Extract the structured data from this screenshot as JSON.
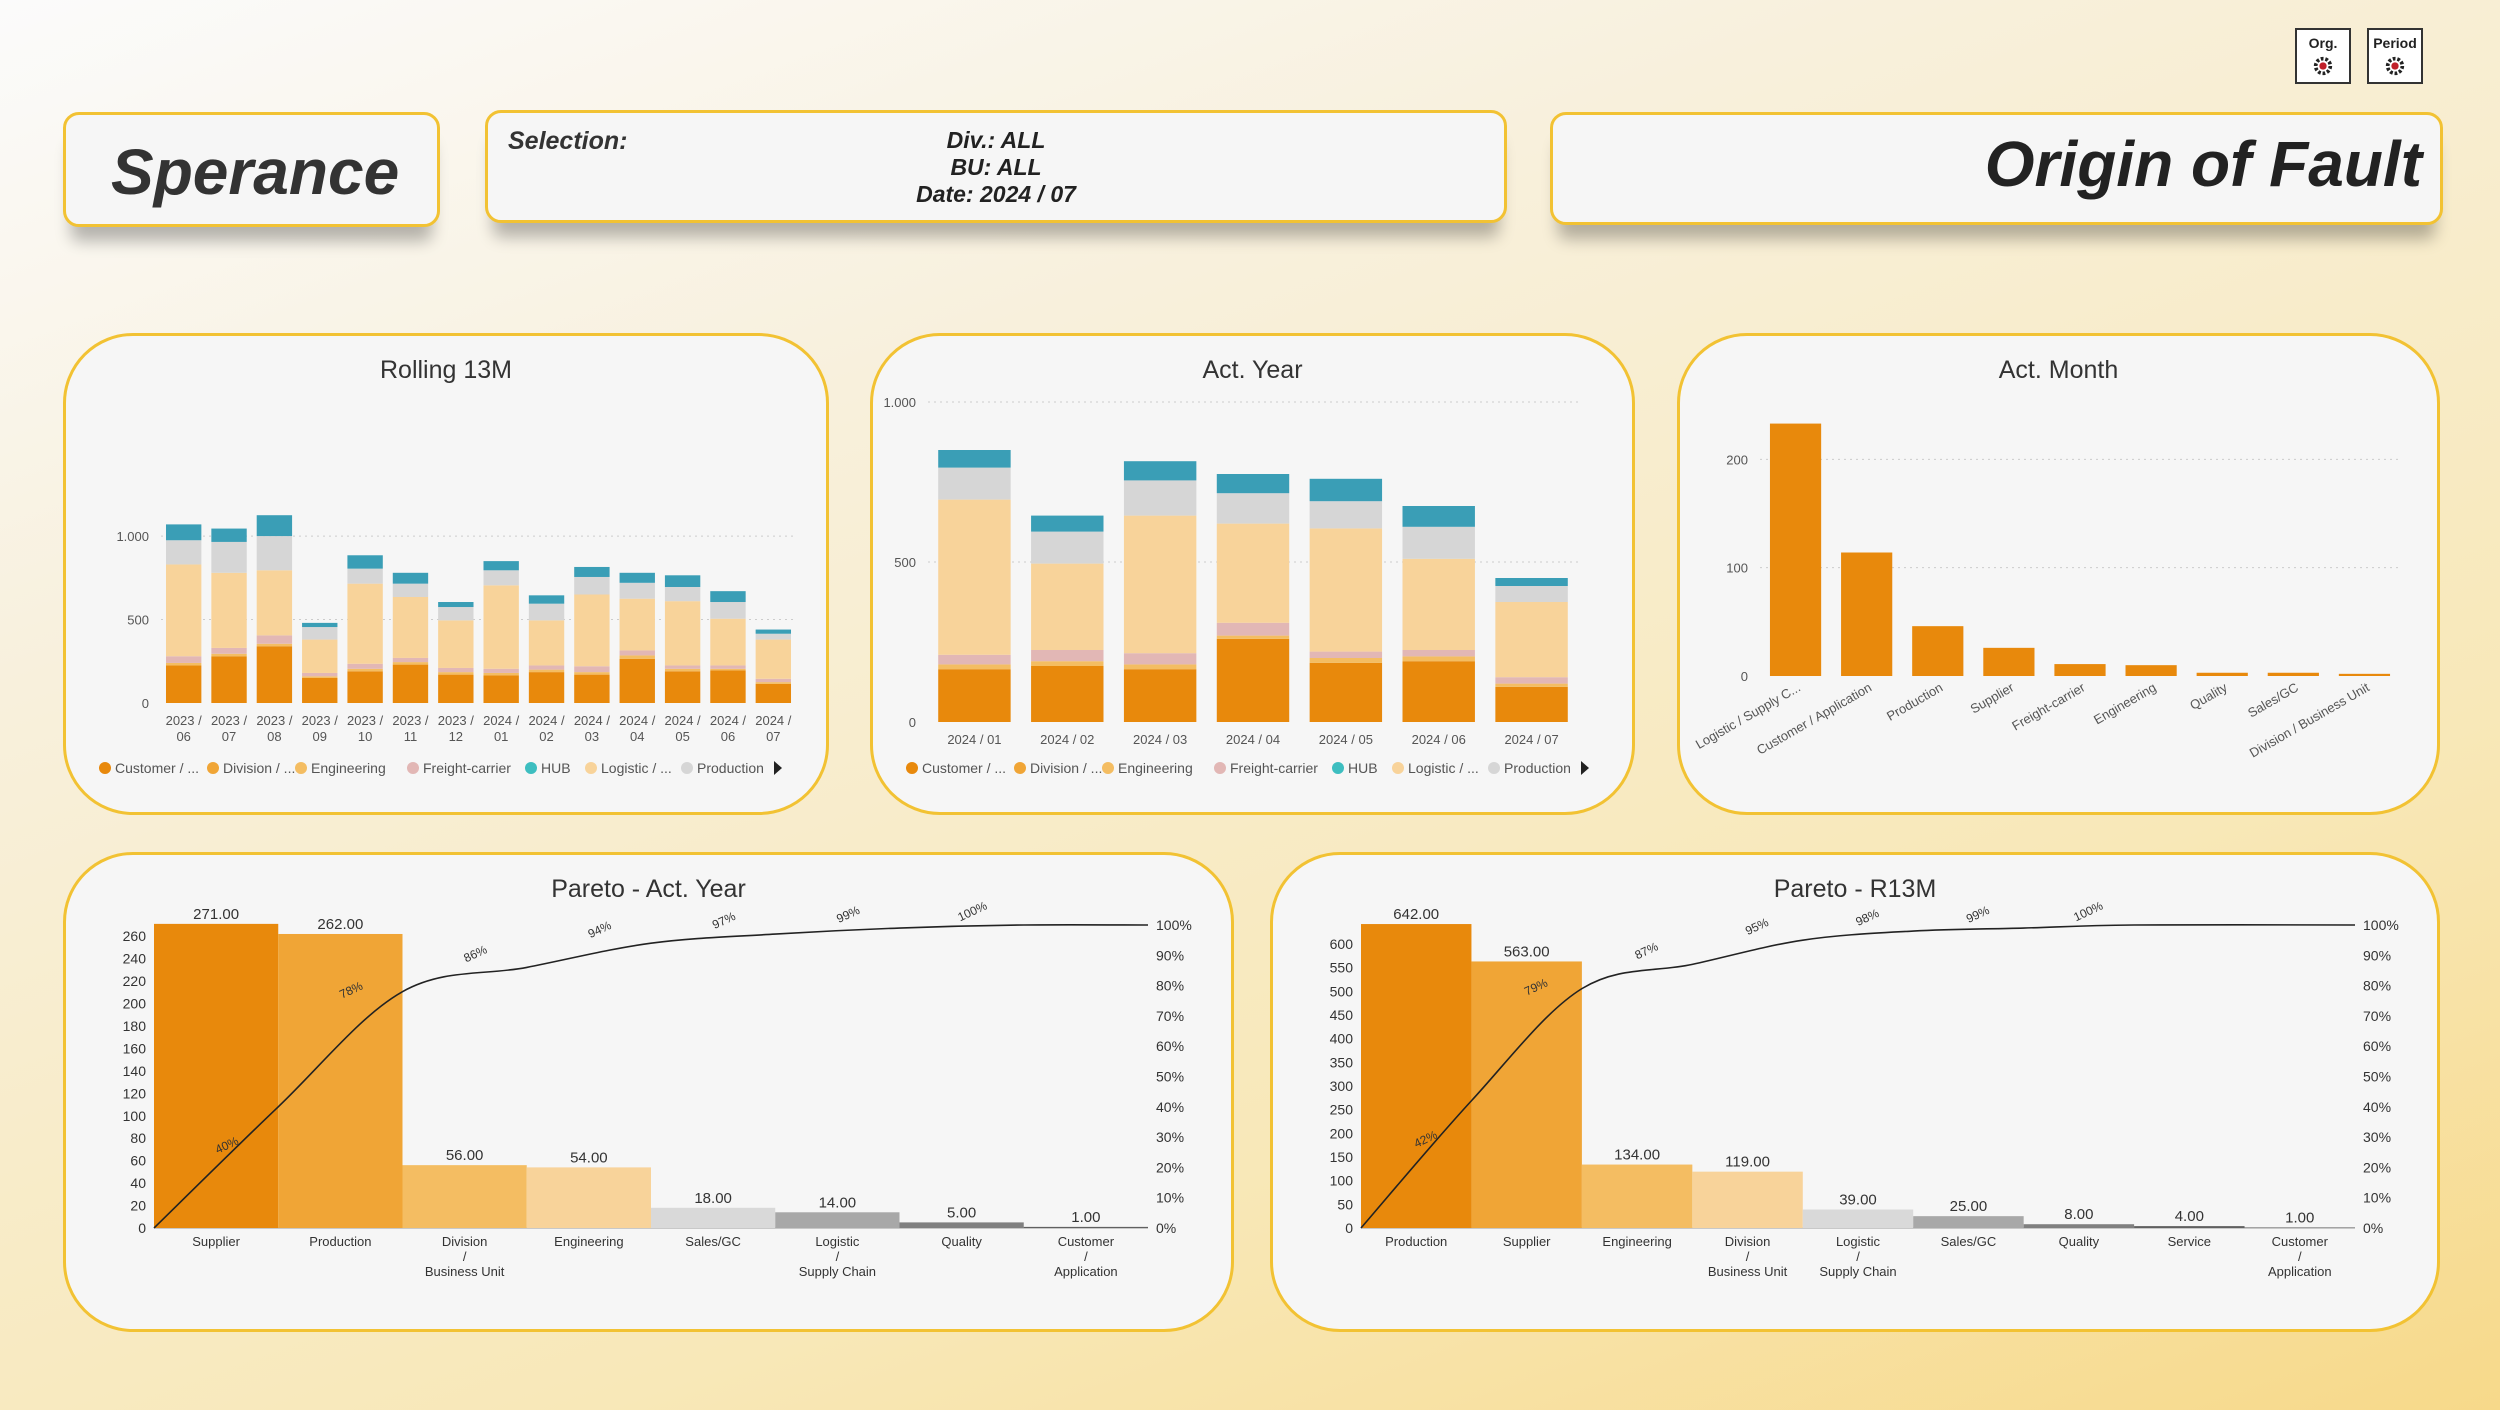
{
  "buttons": [
    {
      "label": "Org.",
      "icon": "gear-icon"
    },
    {
      "label": "Period",
      "icon": "gear-icon"
    }
  ],
  "logo": "Sperance",
  "selection": {
    "label": "Selection:",
    "div": "Div.: ALL",
    "bu": "BU: ALL",
    "date": "Date: 2024 / 07"
  },
  "page_title": "Origin of Fault",
  "colors": {
    "customer": "#e8890c",
    "division": "#f0a536",
    "engineering": "#f4bd62",
    "freight": "#e2b7b5",
    "hub": "#3a9eb6",
    "logistic": "#f8d39a",
    "production": "#d6d6d6",
    "bar_single": "#e8890c",
    "accent_border": "#f2c233"
  },
  "legend": {
    "items": [
      {
        "label": "Customer / ...",
        "color": "#e8890c"
      },
      {
        "label": "Division / ...",
        "color": "#f0a536"
      },
      {
        "label": "Engineering",
        "color": "#f4bd62"
      },
      {
        "label": "Freight-carrier",
        "color": "#e2b7b5"
      },
      {
        "label": "HUB",
        "color": "#3dbec0"
      },
      {
        "label": "Logistic / ...",
        "color": "#f8d39a"
      },
      {
        "label": "Production",
        "color": "#d6d6d6"
      }
    ],
    "more_icon": "triangle-right-icon"
  },
  "chart_data": [
    {
      "id": "rolling13m",
      "type": "bar",
      "stacked": true,
      "title": "Rolling 13M",
      "categories": [
        "2023 / 06",
        "2023 / 07",
        "2023 / 08",
        "2023 / 09",
        "2023 / 10",
        "2023 / 11",
        "2023 / 12",
        "2024 / 01",
        "2024 / 02",
        "2024 / 03",
        "2024 / 04",
        "2024 / 05",
        "2024 / 06",
        "2024 / 07"
      ],
      "ylim": [
        0,
        1300
      ],
      "yticks": [
        0,
        500,
        1000
      ],
      "ytick_labels": [
        "0",
        "500",
        "1.000"
      ],
      "series": [
        {
          "color": "#e8890c",
          "values": [
            225,
            280,
            340,
            150,
            190,
            230,
            170,
            165,
            185,
            170,
            265,
            190,
            195,
            115
          ]
        },
        {
          "color": "#f4bd62",
          "values": [
            15,
            15,
            15,
            10,
            15,
            15,
            15,
            15,
            15,
            15,
            20,
            15,
            10,
            10
          ]
        },
        {
          "color": "#e2b7b5",
          "values": [
            40,
            35,
            50,
            20,
            30,
            25,
            25,
            25,
            25,
            35,
            30,
            20,
            20,
            20
          ]
        },
        {
          "color": "#f8d39a",
          "values": [
            550,
            450,
            390,
            200,
            480,
            365,
            285,
            500,
            270,
            430,
            310,
            385,
            280,
            235
          ]
        },
        {
          "color": "#d6d6d6",
          "values": [
            145,
            185,
            205,
            75,
            90,
            80,
            80,
            90,
            100,
            105,
            95,
            85,
            100,
            35
          ]
        },
        {
          "color": "#3a9eb6",
          "values": [
            95,
            80,
            125,
            25,
            80,
            65,
            30,
            55,
            50,
            60,
            60,
            70,
            65,
            25
          ]
        }
      ]
    },
    {
      "id": "act_year",
      "type": "bar",
      "stacked": true,
      "title": "Act. Year",
      "categories": [
        "2024 / 01",
        "2024 / 02",
        "2024 / 03",
        "2024 / 04",
        "2024 / 05",
        "2024 / 06",
        "2024 / 07"
      ],
      "ylim": [
        0,
        1000
      ],
      "yticks": [
        0,
        500,
        1000
      ],
      "ytick_labels": [
        "0",
        "500",
        "1.000"
      ],
      "series": [
        {
          "color": "#e8890c",
          "values": [
            165,
            175,
            165,
            260,
            185,
            190,
            110
          ]
        },
        {
          "color": "#f4bd62",
          "values": [
            15,
            15,
            15,
            10,
            15,
            15,
            10
          ]
        },
        {
          "color": "#e2b7b5",
          "values": [
            30,
            35,
            35,
            40,
            20,
            20,
            20
          ]
        },
        {
          "color": "#f8d39a",
          "values": [
            485,
            270,
            430,
            310,
            385,
            285,
            235
          ]
        },
        {
          "color": "#d6d6d6",
          "values": [
            100,
            100,
            110,
            95,
            85,
            100,
            50
          ]
        },
        {
          "color": "#3a9eb6",
          "values": [
            55,
            50,
            60,
            60,
            70,
            65,
            25
          ]
        }
      ]
    },
    {
      "id": "act_month",
      "type": "bar",
      "title": "Act. Month",
      "categories": [
        "Logistic / Supply C...",
        "Customer / Application",
        "Production",
        "Supplier",
        "Freight-carrier",
        "Engineering",
        "Quality",
        "Sales/GC",
        "Division / Business Unit"
      ],
      "values": [
        233,
        114,
        46,
        26,
        11,
        10,
        3,
        3,
        2
      ],
      "ylim": [
        0,
        240
      ],
      "yticks": [
        0,
        100,
        200
      ],
      "ytick_labels": [
        "0",
        "100",
        "200"
      ]
    },
    {
      "id": "pareto_year",
      "type": "bar",
      "pareto": true,
      "title": "Pareto - Act. Year",
      "categories": [
        "Supplier",
        "Production",
        "Division / Business Unit",
        "Engineering",
        "Sales/GC",
        "Logistic / Supply Chain",
        "Quality",
        "Customer / Application"
      ],
      "values": [
        271,
        262,
        56,
        54,
        18,
        14,
        5,
        1
      ],
      "value_labels": [
        "271.00",
        "262.00",
        "56.00",
        "54.00",
        "18.00",
        "14.00",
        "5.00",
        "1.00"
      ],
      "bar_colors": [
        "#e8890c",
        "#f0a536",
        "#f4bd62",
        "#f8d39a",
        "#d9d9d9",
        "#a8a8a8",
        "#808080",
        "#606060"
      ],
      "cum_pct": [
        40,
        78,
        86,
        94,
        97,
        99,
        100
      ],
      "cum_labels": [
        "40%",
        "78%",
        "86%",
        "94%",
        "97%",
        "99%",
        "100%"
      ],
      "ylim": [
        0,
        270
      ],
      "yticks": [
        0,
        20,
        40,
        60,
        80,
        100,
        120,
        140,
        160,
        180,
        200,
        220,
        240,
        260
      ],
      "y2_ticks": [
        "0%",
        "10%",
        "20%",
        "30%",
        "40%",
        "50%",
        "60%",
        "70%",
        "80%",
        "90%",
        "100%"
      ]
    },
    {
      "id": "pareto_r13m",
      "type": "bar",
      "pareto": true,
      "title": "Pareto - R13M",
      "categories": [
        "Production",
        "Supplier",
        "Engineering",
        "Division / Business Unit",
        "Logistic / Supply Chain",
        "Sales/GC",
        "Quality",
        "Service",
        "Customer / Application"
      ],
      "values": [
        642,
        563,
        134,
        119,
        39,
        25,
        8,
        4,
        1
      ],
      "value_labels": [
        "642.00",
        "563.00",
        "134.00",
        "119.00",
        "39.00",
        "25.00",
        "8.00",
        "4.00",
        "1.00"
      ],
      "bar_colors": [
        "#e8890c",
        "#f0a536",
        "#f4bd62",
        "#f8d39a",
        "#d9d9d9",
        "#a8a8a8",
        "#808080",
        "#606060",
        "#505050"
      ],
      "cum_pct": [
        42,
        79,
        87,
        95,
        98,
        99,
        100
      ],
      "cum_labels": [
        "42%",
        "79%",
        "87%",
        "95%",
        "98%",
        "99%",
        "100%"
      ],
      "ylim": [
        0,
        640
      ],
      "yticks": [
        0,
        50,
        100,
        150,
        200,
        250,
        300,
        350,
        400,
        450,
        500,
        550,
        600
      ],
      "y2_ticks": [
        "0%",
        "10%",
        "20%",
        "30%",
        "40%",
        "50%",
        "60%",
        "70%",
        "80%",
        "90%",
        "100%"
      ]
    }
  ]
}
